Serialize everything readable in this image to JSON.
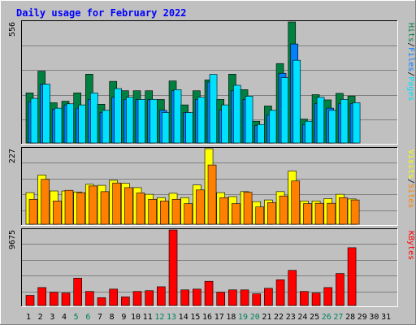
{
  "title": "Daily usage for February 2022",
  "colors": {
    "background": "#C0C0C0",
    "plot_bg": "#C0C0C0",
    "grid": "#808080",
    "title": "#0000FF",
    "hits": "#008040",
    "files": "#0080FF",
    "pages": "#00E0FF",
    "visits": "#FFFF00",
    "sites": "#FF8000",
    "kbytes": "#FF0000",
    "weekend_label": "#00805C",
    "weekday_label": "#000000"
  },
  "chart_data": [
    {
      "type": "bar",
      "panel": "top",
      "ymax_label": "556",
      "ylim": [
        0,
        556
      ],
      "right_labels": [
        "Pages",
        "/",
        "Files",
        "/",
        "Hits"
      ],
      "categories": [
        "1",
        "2",
        "3",
        "4",
        "5",
        "6",
        "7",
        "8",
        "9",
        "10",
        "11",
        "12",
        "13",
        "14",
        "15",
        "16",
        "17",
        "18",
        "19",
        "20",
        "21",
        "22",
        "23",
        "24",
        "25",
        "26",
        "27",
        "28",
        "29",
        "30",
        "31"
      ],
      "series": [
        {
          "name": "Hits",
          "values": [
            230,
            330,
            185,
            192,
            230,
            316,
            178,
            283,
            240,
            240,
            240,
            200,
            285,
            175,
            240,
            290,
            200,
            316,
            245,
            100,
            170,
            365,
            556,
            110,
            222,
            198,
            228,
            216,
            0,
            0,
            0
          ]
        },
        {
          "name": "Files",
          "values": [
            190,
            270,
            155,
            175,
            160,
            200,
            140,
            210,
            200,
            200,
            200,
            150,
            240,
            140,
            200,
            280,
            150,
            240,
            200,
            80,
            130,
            320,
            455,
            85,
            180,
            160,
            180,
            180,
            0,
            0,
            0
          ]
        },
        {
          "name": "Pages",
          "values": [
            205,
            270,
            160,
            180,
            175,
            230,
            150,
            250,
            210,
            200,
            200,
            140,
            245,
            140,
            210,
            315,
            175,
            265,
            215,
            85,
            150,
            300,
            380,
            100,
            210,
            150,
            200,
            185,
            0,
            0,
            0
          ]
        }
      ]
    },
    {
      "type": "bar",
      "panel": "middle",
      "ymax_label": "227",
      "ylim": [
        0,
        227
      ],
      "right_labels": [
        "Sites",
        "/",
        "Visits"
      ],
      "categories": [
        "1",
        "2",
        "3",
        "4",
        "5",
        "6",
        "7",
        "8",
        "9",
        "10",
        "11",
        "12",
        "13",
        "14",
        "15",
        "16",
        "17",
        "18",
        "19",
        "20",
        "21",
        "22",
        "23",
        "24",
        "25",
        "26",
        "27",
        "28",
        "29",
        "30",
        "31"
      ],
      "series": [
        {
          "name": "Visits",
          "values": [
            95,
            148,
            100,
            100,
            97,
            120,
            117,
            132,
            123,
            110,
            90,
            80,
            93,
            80,
            118,
            227,
            95,
            83,
            98,
            68,
            73,
            98,
            160,
            70,
            70,
            77,
            90,
            76,
            0,
            0,
            0
          ]
        },
        {
          "name": "Sites",
          "values": [
            75,
            135,
            70,
            102,
            95,
            115,
            98,
            124,
            110,
            94,
            75,
            70,
            75,
            62,
            103,
            178,
            80,
            62,
            96,
            52,
            65,
            85,
            130,
            62,
            63,
            63,
            80,
            73,
            0,
            0,
            0
          ]
        }
      ]
    },
    {
      "type": "bar",
      "panel": "bottom",
      "ymax_label": "9675",
      "ylim": [
        0,
        9675
      ],
      "right_labels": [
        "KBytes"
      ],
      "categories": [
        "1",
        "2",
        "3",
        "4",
        "5",
        "6",
        "7",
        "8",
        "9",
        "10",
        "11",
        "12",
        "13",
        "14",
        "15",
        "16",
        "17",
        "18",
        "19",
        "20",
        "21",
        "22",
        "23",
        "24",
        "25",
        "26",
        "27",
        "28",
        "29",
        "30",
        "31"
      ],
      "series": [
        {
          "name": "KBytes",
          "values": [
            1300,
            2300,
            1700,
            1600,
            3500,
            1800,
            1000,
            2100,
            1100,
            1800,
            1900,
            2400,
            9675,
            2000,
            2100,
            3100,
            1700,
            2000,
            2000,
            1500,
            2200,
            3300,
            4500,
            1800,
            1600,
            2300,
            4100,
            7400,
            0,
            0,
            0
          ]
        }
      ]
    }
  ],
  "days": [
    "1",
    "2",
    "3",
    "4",
    "5",
    "6",
    "7",
    "8",
    "9",
    "10",
    "11",
    "12",
    "13",
    "14",
    "15",
    "16",
    "17",
    "18",
    "19",
    "20",
    "21",
    "22",
    "23",
    "24",
    "25",
    "26",
    "27",
    "28",
    "29",
    "30",
    "31"
  ],
  "weekend_days": [
    5,
    6,
    12,
    13,
    19,
    20,
    26,
    27
  ]
}
